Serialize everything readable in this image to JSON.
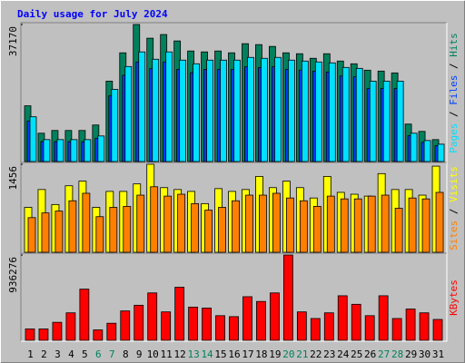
{
  "title": "Daily usage for July 2024",
  "legend_separator": " / ",
  "chart_data": [
    {
      "type": "bar",
      "ylim": [
        0,
        37170
      ],
      "yticks": [
        37170
      ],
      "series": [
        {
          "name": "Hits",
          "color": "#00805c",
          "values": [
            15116,
            7682,
            8425,
            8425,
            8425,
            9912,
            21806,
            29488,
            37170,
            33453,
            34444,
            32710,
            29984,
            29736,
            29984,
            29488,
            31966,
            31718,
            31223,
            29488,
            29240,
            28001,
            29240,
            27258,
            26515,
            24780,
            24532,
            24037,
            10160,
            8177,
            5947
          ]
        },
        {
          "name": "Files",
          "color": "#0040ff",
          "values": [
            11000,
            5400,
            5400,
            5400,
            5400,
            6300,
            17800,
            23400,
            27000,
            25200,
            27000,
            25000,
            24100,
            25000,
            25000,
            25000,
            25700,
            25500,
            25700,
            25000,
            24800,
            24500,
            24300,
            23200,
            23000,
            19800,
            19800,
            19800,
            7000,
            5200,
            4300
          ]
        },
        {
          "name": "Pages",
          "color": "#00e0ff",
          "values": [
            12142,
            5947,
            5947,
            5947,
            5947,
            6938,
            19576,
            25771,
            29736,
            27754,
            29736,
            27506,
            26515,
            27506,
            27506,
            27506,
            28249,
            28001,
            28249,
            27506,
            27258,
            27010,
            26762,
            25524,
            25276,
            21806,
            21806,
            21806,
            7682,
            5699,
            4708
          ]
        }
      ]
    },
    {
      "type": "bar",
      "ylim": [
        0,
        1456
      ],
      "yticks": [
        1456
      ],
      "series": [
        {
          "name": "Visits",
          "color": "#ffff00",
          "values": [
            743,
            1038,
            790,
            1100,
            1177,
            743,
            1007,
            1007,
            1131,
            1456,
            1069,
            1038,
            1007,
            805,
            1053,
            1007,
            1038,
            1255,
            1069,
            1177,
            1069,
            898,
            1255,
            991,
            960,
            929,
            1301,
            1038,
            1038,
            945,
            1425
          ]
        },
        {
          "name": "Sites",
          "color": "#ff8000",
          "values": [
            573,
            651,
            682,
            852,
            976,
            589,
            743,
            759,
            945,
            1084,
            929,
            960,
            805,
            697,
            743,
            852,
            945,
            945,
            976,
            898,
            852,
            759,
            929,
            883,
            883,
            929,
            945,
            728,
            898,
            883,
            991
          ]
        }
      ]
    },
    {
      "type": "bar",
      "ylim": [
        0,
        936276
      ],
      "yticks": [
        936276
      ],
      "categories": [
        "1",
        "2",
        "3",
        "4",
        "5",
        "6",
        "7",
        "8",
        "9",
        "10",
        "11",
        "12",
        "13",
        "14",
        "15",
        "16",
        "17",
        "18",
        "19",
        "20",
        "21",
        "22",
        "23",
        "24",
        "25",
        "26",
        "27",
        "28",
        "29",
        "30",
        "31"
      ],
      "category_colors": [
        "#000000",
        "#000000",
        "#000000",
        "#000000",
        "#000000",
        "#00805c",
        "#00805c",
        "#000000",
        "#000000",
        "#000000",
        "#000000",
        "#000000",
        "#00805c",
        "#00805c",
        "#000000",
        "#000000",
        "#000000",
        "#000000",
        "#000000",
        "#00805c",
        "#00805c",
        "#000000",
        "#000000",
        "#000000",
        "#000000",
        "#000000",
        "#00805c",
        "#00805c",
        "#000000",
        "#000000",
        "#000000"
      ],
      "series": [
        {
          "name": "KBytes",
          "color": "#ff0000",
          "values": [
            124837,
            124837,
            197658,
            301689,
            561766,
            114434,
            187255,
            322495,
            384913,
            520153,
            312092,
            582572,
            364107,
            353704,
            270480,
            260077,
            478541,
            426526,
            520153,
            936276,
            312092,
            239270,
            301689,
            488944,
            395317,
            270480,
            488944,
            239270,
            343301,
            301689,
            228867
          ]
        }
      ]
    }
  ]
}
